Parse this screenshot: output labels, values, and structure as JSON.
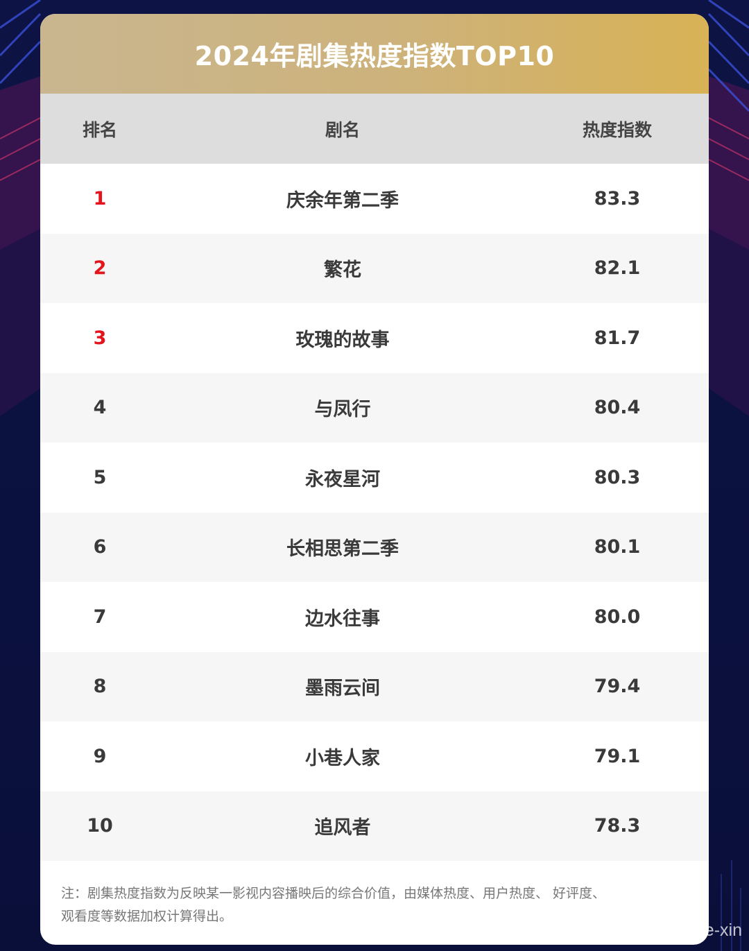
{
  "title": "2024年剧集热度指数TOP10",
  "colors": {
    "background": "#0b1140",
    "title_bar_start": "#c9b690",
    "title_bar_end": "#d8b255",
    "header_bg": "#dddddd",
    "top_rank": "#e3141b",
    "text": "#3a3a3a"
  },
  "chart_data": {
    "type": "table",
    "columns": [
      "排名",
      "剧名",
      "热度指数"
    ],
    "rows": [
      {
        "rank": "1",
        "name": "庆余年第二季",
        "score": "83.3"
      },
      {
        "rank": "2",
        "name": "繁花",
        "score": "82.1"
      },
      {
        "rank": "3",
        "name": "玫瑰的故事",
        "score": "81.7"
      },
      {
        "rank": "4",
        "name": "与凤行",
        "score": "80.4"
      },
      {
        "rank": "5",
        "name": "永夜星河",
        "score": "80.3"
      },
      {
        "rank": "6",
        "name": "长相思第二季",
        "score": "80.1"
      },
      {
        "rank": "7",
        "name": "边水往事",
        "score": "80.0"
      },
      {
        "rank": "8",
        "name": "墨雨云间",
        "score": "79.4"
      },
      {
        "rank": "9",
        "name": "小巷人家",
        "score": "79.1"
      },
      {
        "rank": "10",
        "name": "追风者",
        "score": "78.3"
      }
    ],
    "highlighted_ranks": 3
  },
  "note_line1": "注：剧集热度指数为反映某一影视内容播映后的综合价值，由媒体热度、用户热度、 好评度、",
  "note_line2": "观看度等数据加权计算得出。",
  "watermark": {
    "icon": "weibo-icon",
    "text": "@Pomegranate-xin"
  }
}
